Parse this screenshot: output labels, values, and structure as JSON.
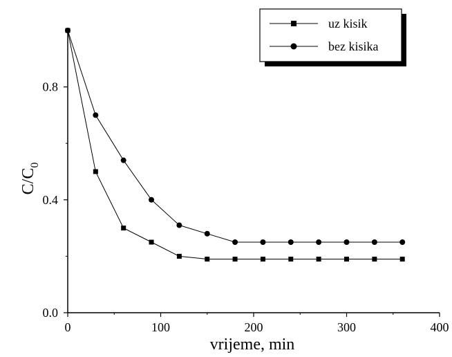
{
  "chart_data": {
    "type": "line",
    "title": "",
    "xlabel": "vrijeme, min",
    "ylabel_main": "C/C",
    "ylabel_sub": "0",
    "xlim": [
      0,
      400
    ],
    "ylim": [
      0,
      1.0
    ],
    "xticks": [
      0,
      100,
      200,
      300,
      400
    ],
    "yticks": [
      0.0,
      0.4,
      0.8
    ],
    "ytick_labels": [
      "0.0",
      "0.4",
      "0.8"
    ],
    "grid": false,
    "legend_position": "top-right",
    "series": [
      {
        "name": "uz kisik",
        "marker": "square",
        "x": [
          0,
          30,
          60,
          90,
          120,
          150,
          180,
          210,
          240,
          270,
          300,
          330,
          360
        ],
        "y": [
          1.0,
          0.5,
          0.3,
          0.25,
          0.2,
          0.19,
          0.19,
          0.19,
          0.19,
          0.19,
          0.19,
          0.19,
          0.19
        ]
      },
      {
        "name": "bez kisika",
        "marker": "circle",
        "x": [
          0,
          30,
          60,
          90,
          120,
          150,
          180,
          210,
          240,
          270,
          300,
          330,
          360
        ],
        "y": [
          1.0,
          0.7,
          0.54,
          0.4,
          0.31,
          0.28,
          0.25,
          0.25,
          0.25,
          0.25,
          0.25,
          0.25,
          0.25
        ]
      }
    ]
  }
}
